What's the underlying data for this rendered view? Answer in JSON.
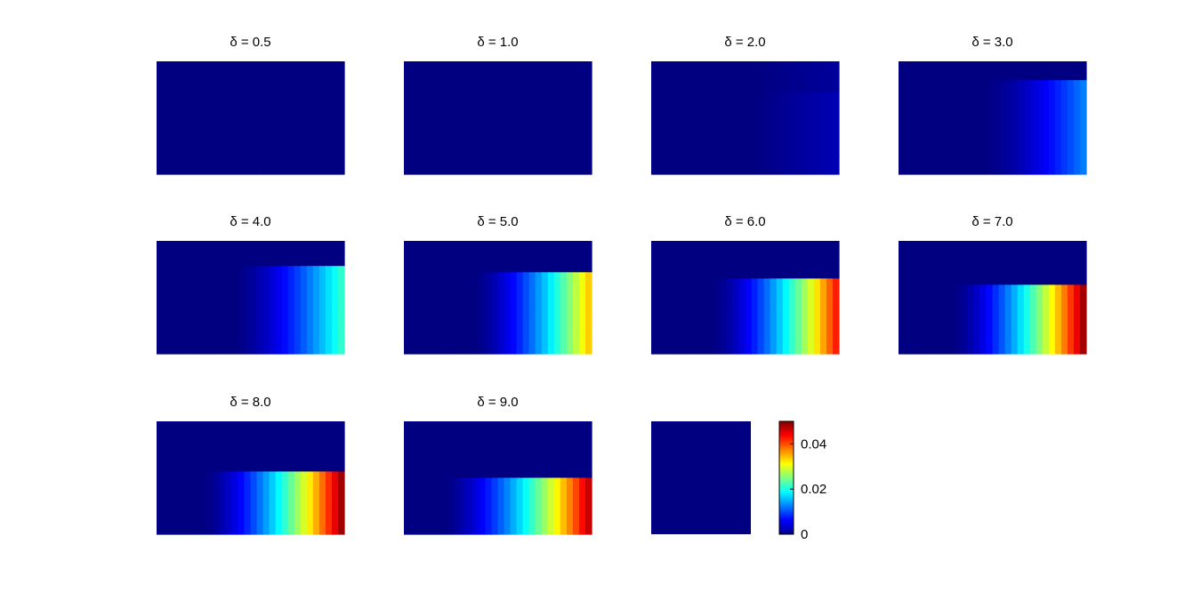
{
  "chart_data": {
    "type": "heatmap",
    "colormap": "jet",
    "panels": [
      {
        "title": "δ = 0.5",
        "delta": 0.5,
        "front_frac": null,
        "max": 0.0
      },
      {
        "title": "δ = 1.0",
        "delta": 1.0,
        "front_frac": null,
        "max": 0.0
      },
      {
        "title": "δ = 2.0",
        "delta": 2.0,
        "front_frac": null,
        "max": 0.005
      },
      {
        "title": "δ = 3.0",
        "delta": 3.0,
        "front_frac": 0.16,
        "max": 0.013
      },
      {
        "title": "δ = 4.0",
        "delta": 4.0,
        "front_frac": 0.22,
        "max": 0.022
      },
      {
        "title": "δ = 5.0",
        "delta": 5.0,
        "front_frac": 0.27,
        "max": 0.035
      },
      {
        "title": "δ = 6.0",
        "delta": 6.0,
        "front_frac": 0.33,
        "max": 0.044
      },
      {
        "title": "δ = 7.0",
        "delta": 7.0,
        "front_frac": 0.39,
        "max": 0.05
      },
      {
        "title": "δ = 8.0",
        "delta": 8.0,
        "front_frac": 0.45,
        "max": 0.05
      },
      {
        "title": "δ = 9.0",
        "delta": 9.0,
        "front_frac": 0.5,
        "max": 0.048
      }
    ],
    "extra_panel": {
      "title": "",
      "value": 0.0
    },
    "colorbar": {
      "range": [
        0,
        0.05
      ],
      "ticks": [
        "0",
        "0.02",
        "0.04"
      ],
      "tick_values": [
        0,
        0.02,
        0.04
      ]
    }
  }
}
